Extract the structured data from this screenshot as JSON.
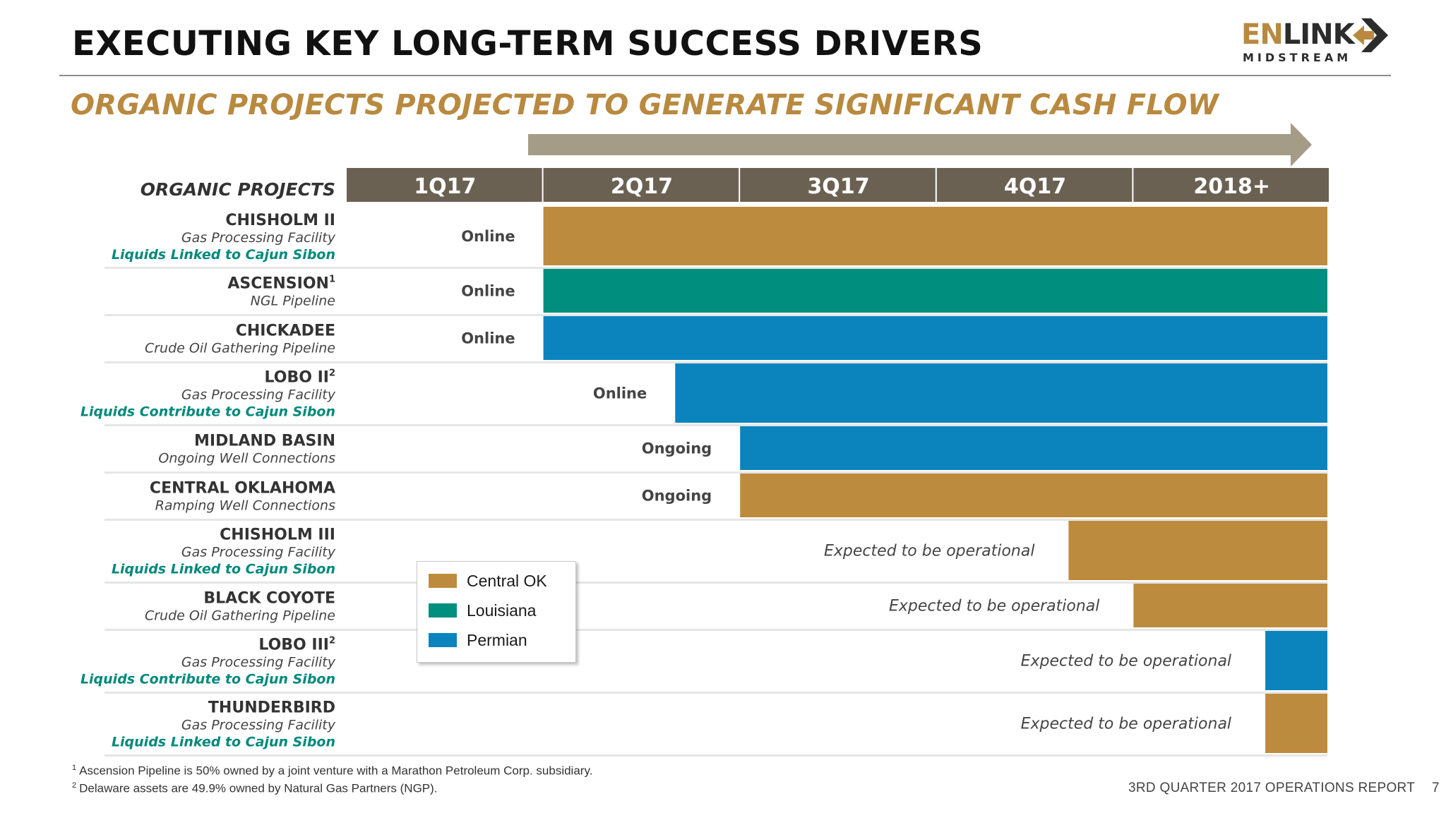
{
  "header": {
    "title": "EXECUTING KEY LONG-TERM SUCCESS DRIVERS",
    "subtitle": "ORGANIC PROJECTS PROJECTED TO GENERATE SIGNIFICANT CASH FLOW"
  },
  "logo": {
    "name_head": "EN",
    "name_tail": "LINK",
    "sub": "MIDSTREAM"
  },
  "colors": {
    "central_ok": "#bd8b3e",
    "louisiana": "#008f7e",
    "permian": "#0b84bd",
    "header_bg": "#6b6153",
    "arrow": "#a49c86",
    "accent_text": "#00897b",
    "row_rule": "#e6e6e6"
  },
  "chart_data": {
    "type": "gantt",
    "row_header": "ORGANIC PROJECTS",
    "periods": [
      "1Q17",
      "2Q17",
      "3Q17",
      "4Q17",
      "2018+"
    ],
    "rows": [
      {
        "name": "CHISHOLM II",
        "sup": "",
        "desc": "Gas Processing Facility",
        "note": "Liquids Linked to Cajun Sibon",
        "start": 1.0,
        "region": "central_ok",
        "status": "Online"
      },
      {
        "name": "ASCENSION",
        "sup": "1",
        "desc": "NGL Pipeline",
        "note": "",
        "start": 1.0,
        "region": "louisiana",
        "status": "Online"
      },
      {
        "name": "CHICKADEE",
        "sup": "",
        "desc": "Crude Oil Gathering Pipeline",
        "note": "",
        "start": 1.0,
        "region": "permian",
        "status": "Online"
      },
      {
        "name": "LOBO II",
        "sup": "2",
        "desc": "Gas Processing Facility",
        "note": "Liquids Contribute to Cajun Sibon",
        "start": 1.67,
        "region": "permian",
        "status": "Online"
      },
      {
        "name": "MIDLAND BASIN",
        "sup": "",
        "desc": "Ongoing Well Connections",
        "note": "",
        "start": 2.0,
        "region": "permian",
        "status": "Ongoing"
      },
      {
        "name": "CENTRAL OKLAHOMA",
        "sup": "",
        "desc": "Ramping Well Connections",
        "note": "",
        "start": 2.0,
        "region": "central_ok",
        "status": "Ongoing"
      },
      {
        "name": "CHISHOLM III",
        "sup": "",
        "desc": "Gas Processing Facility",
        "note": "Liquids Linked to Cajun Sibon",
        "start": 3.67,
        "region": "central_ok",
        "status": "Expected to be operational"
      },
      {
        "name": "BLACK COYOTE",
        "sup": "",
        "desc": "Crude Oil Gathering Pipeline",
        "note": "",
        "start": 4.0,
        "region": "central_ok",
        "status": "Expected to be operational"
      },
      {
        "name": "LOBO III",
        "sup": "2",
        "desc": "Gas Processing Facility",
        "note": "Liquids Contribute to Cajun Sibon",
        "start": 4.67,
        "region": "permian",
        "status": "Expected to be operational"
      },
      {
        "name": "THUNDERBIRD",
        "sup": "",
        "desc": "Gas Processing Facility",
        "note": "Liquids Linked to Cajun Sibon",
        "start": 4.67,
        "region": "central_ok",
        "status": "Expected to be operational"
      }
    ],
    "legend": [
      {
        "key": "central_ok",
        "label": "Central OK"
      },
      {
        "key": "louisiana",
        "label": "Louisiana"
      },
      {
        "key": "permian",
        "label": "Permian"
      }
    ]
  },
  "footnotes": [
    {
      "mark": "1",
      "text": "Ascension Pipeline is 50% owned by a joint venture with a Marathon Petroleum Corp. subsidiary."
    },
    {
      "mark": "2",
      "text": "Delaware assets are 49.9% owned by Natural Gas Partners (NGP)."
    }
  ],
  "footer": {
    "report": "3RD QUARTER 2017 OPERATIONS REPORT",
    "page": "7"
  }
}
